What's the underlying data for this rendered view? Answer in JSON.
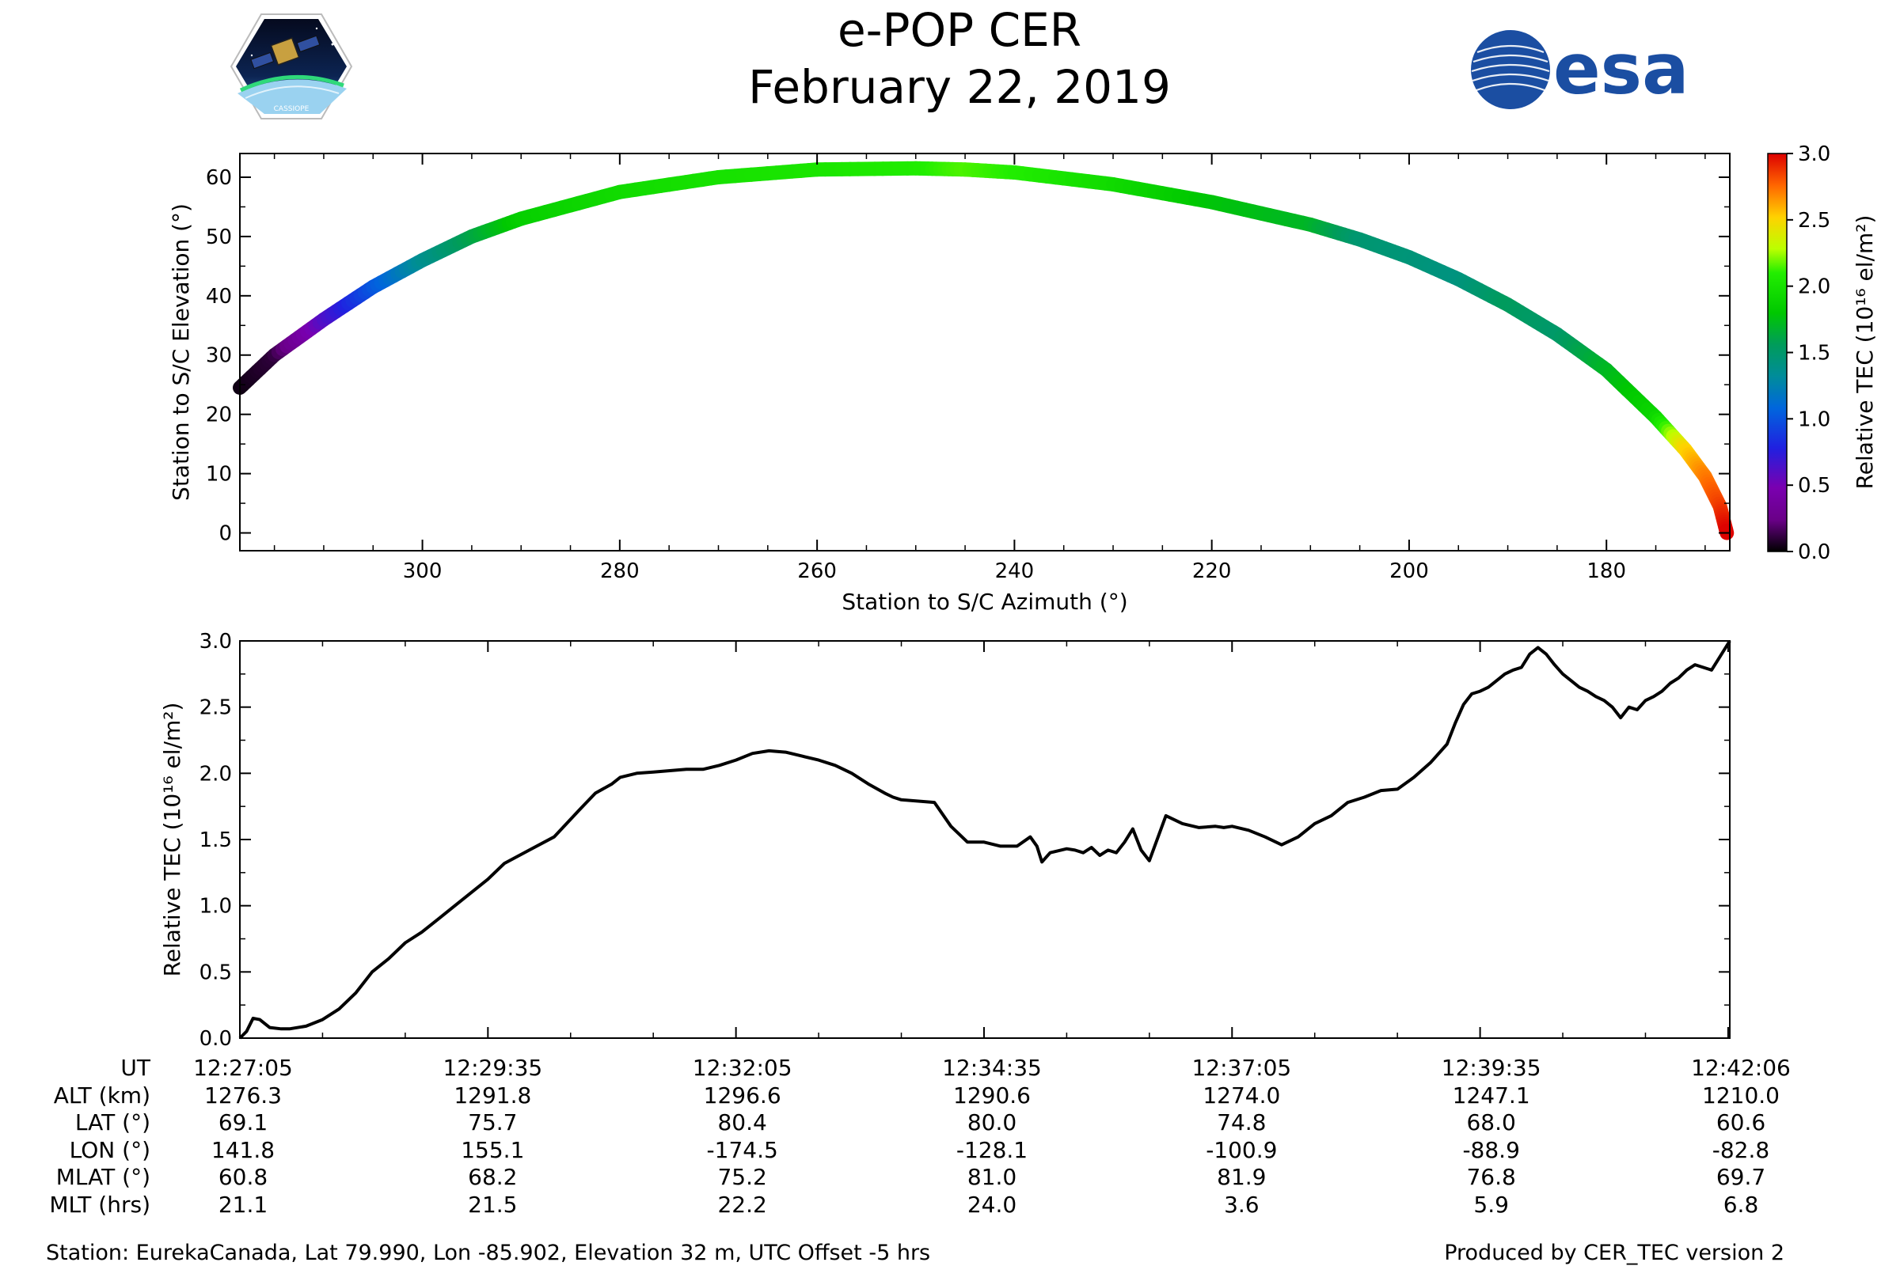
{
  "header": {
    "title": "e-POP CER",
    "date": "February 22, 2019",
    "logo_left": "CASSIOPE",
    "logo_right": "esa"
  },
  "chart_data": [
    {
      "type": "scatter",
      "title": "",
      "xlabel": "Station to S/C Azimuth (°)",
      "ylabel": "Station to S/C Elevation (°)",
      "xlim": [
        318.5,
        167.5
      ],
      "ylim": [
        -3,
        64
      ],
      "xticks": [
        300,
        280,
        260,
        240,
        220,
        200,
        180
      ],
      "yticks": [
        0,
        10,
        20,
        30,
        40,
        50,
        60
      ],
      "color_by": "Relative TEC",
      "colorbar": {
        "label": "Relative TEC (10¹⁶ el/m²)",
        "range": [
          0,
          3
        ],
        "ticks": [
          "0.0",
          "0.5",
          "1.0",
          "1.5",
          "2.0",
          "2.5",
          "3.0"
        ],
        "colormap": "nipy_spectral"
      },
      "track": {
        "azimuth": [
          318.5,
          315,
          310,
          305,
          300,
          295,
          290,
          280,
          270,
          260,
          250,
          245,
          240,
          230,
          220,
          210,
          205,
          200,
          195,
          190,
          185,
          180,
          175,
          172,
          170,
          168.5,
          167.8
        ],
        "elevation": [
          24.5,
          30,
          36,
          41.5,
          46,
          50,
          53,
          57.5,
          60,
          61.3,
          61.5,
          61.3,
          60.8,
          58.8,
          55.8,
          52,
          49.5,
          46.5,
          42.8,
          38.5,
          33.5,
          27.5,
          19.5,
          14,
          9.5,
          4.5,
          0
        ],
        "tec": [
          0.03,
          0.1,
          0.6,
          1.0,
          1.35,
          1.6,
          1.85,
          1.95,
          2.0,
          2.03,
          2.08,
          2.15,
          2.1,
          1.95,
          1.78,
          1.7,
          1.48,
          1.45,
          1.42,
          1.55,
          1.5,
          1.7,
          1.9,
          2.5,
          2.7,
          2.85,
          3.0
        ]
      }
    },
    {
      "type": "line",
      "title": "",
      "xlabel": "",
      "ylabel": "Relative TEC (10¹⁶ el/m²)",
      "xlim": [
        0,
        901
      ],
      "ylim": [
        0,
        3
      ],
      "yticks": [
        "0.0",
        "0.5",
        "1.0",
        "1.5",
        "2.0",
        "2.5",
        "3.0"
      ],
      "x_unit": "seconds after 12:27:05 UT",
      "series": [
        {
          "name": "Relative TEC",
          "x": [
            0,
            4,
            8,
            12,
            18,
            25,
            30,
            40,
            50,
            60,
            70,
            80,
            90,
            100,
            110,
            120,
            130,
            140,
            150,
            160,
            175,
            190,
            205,
            215,
            225,
            230,
            240,
            250,
            260,
            270,
            280,
            290,
            300,
            310,
            320,
            330,
            340,
            350,
            360,
            370,
            380,
            390,
            395,
            400,
            420,
            430,
            440,
            450,
            460,
            470,
            478,
            482,
            485,
            490,
            500,
            505,
            510,
            515,
            520,
            525,
            530,
            535,
            540,
            545,
            550,
            560,
            570,
            580,
            590,
            595,
            600,
            610,
            620,
            630,
            640,
            650,
            660,
            670,
            680,
            690,
            700,
            710,
            720,
            730,
            735,
            740,
            745,
            750,
            755,
            760,
            765,
            770,
            775,
            780,
            785,
            790,
            795,
            800,
            805,
            810,
            815,
            820,
            825,
            830,
            835,
            840,
            845,
            850,
            855,
            860,
            865,
            870,
            875,
            880,
            885,
            890,
            895,
            901
          ],
          "y": [
            0.0,
            0.05,
            0.15,
            0.14,
            0.08,
            0.07,
            0.07,
            0.09,
            0.14,
            0.22,
            0.34,
            0.5,
            0.6,
            0.72,
            0.8,
            0.9,
            1.0,
            1.1,
            1.2,
            1.32,
            1.42,
            1.52,
            1.72,
            1.85,
            1.92,
            1.97,
            2.0,
            2.01,
            2.02,
            2.03,
            2.03,
            2.06,
            2.1,
            2.15,
            2.17,
            2.16,
            2.13,
            2.1,
            2.06,
            2.0,
            1.92,
            1.85,
            1.82,
            1.8,
            1.78,
            1.6,
            1.48,
            1.48,
            1.45,
            1.45,
            1.52,
            1.45,
            1.33,
            1.4,
            1.43,
            1.42,
            1.4,
            1.44,
            1.38,
            1.42,
            1.4,
            1.48,
            1.58,
            1.42,
            1.34,
            1.68,
            1.62,
            1.59,
            1.6,
            1.59,
            1.6,
            1.57,
            1.52,
            1.46,
            1.52,
            1.62,
            1.68,
            1.78,
            1.82,
            1.87,
            1.88,
            1.97,
            2.08,
            2.22,
            2.38,
            2.52,
            2.6,
            2.62,
            2.65,
            2.7,
            2.75,
            2.78,
            2.8,
            2.9,
            2.95,
            2.9,
            2.82,
            2.75,
            2.7,
            2.65,
            2.62,
            2.58,
            2.55,
            2.5,
            2.42,
            2.5,
            2.48,
            2.55,
            2.58,
            2.62,
            2.68,
            2.72,
            2.78,
            2.82,
            2.8,
            2.78,
            2.88,
            3.0
          ]
        }
      ],
      "ut_table": {
        "row_labels": [
          "UT",
          "ALT (km)",
          "LAT (°)",
          "LON (°)",
          "MLAT (°)",
          "MLT (hrs)"
        ],
        "columns": [
          {
            "UT": "12:27:05",
            "ALT": "1276.3",
            "LAT": "69.1",
            "LON": "141.8",
            "MLAT": "60.8",
            "MLT": "21.1"
          },
          {
            "UT": "12:29:35",
            "ALT": "1291.8",
            "LAT": "75.7",
            "LON": "155.1",
            "MLAT": "68.2",
            "MLT": "21.5"
          },
          {
            "UT": "12:32:05",
            "ALT": "1296.6",
            "LAT": "80.4",
            "LON": "-174.5",
            "MLAT": "75.2",
            "MLT": "22.2"
          },
          {
            "UT": "12:34:35",
            "ALT": "1290.6",
            "LAT": "80.0",
            "LON": "-128.1",
            "MLAT": "81.0",
            "MLT": "24.0"
          },
          {
            "UT": "12:37:05",
            "ALT": "1274.0",
            "LAT": "74.8",
            "LON": "-100.9",
            "MLAT": "81.9",
            "MLT": "3.6"
          },
          {
            "UT": "12:39:35",
            "ALT": "1247.1",
            "LAT": "68.0",
            "LON": "-88.9",
            "MLAT": "76.8",
            "MLT": "5.9"
          },
          {
            "UT": "12:42:06",
            "ALT": "1210.0",
            "LAT": "60.6",
            "LON": "-82.8",
            "MLAT": "69.7",
            "MLT": "6.8"
          }
        ]
      }
    }
  ],
  "footer": {
    "station": "Station: EurekaCanada, Lat 79.990, Lon -85.902, Elevation 32 m, UTC Offset -5 hrs",
    "producer": "Produced by CER_TEC version 2"
  }
}
